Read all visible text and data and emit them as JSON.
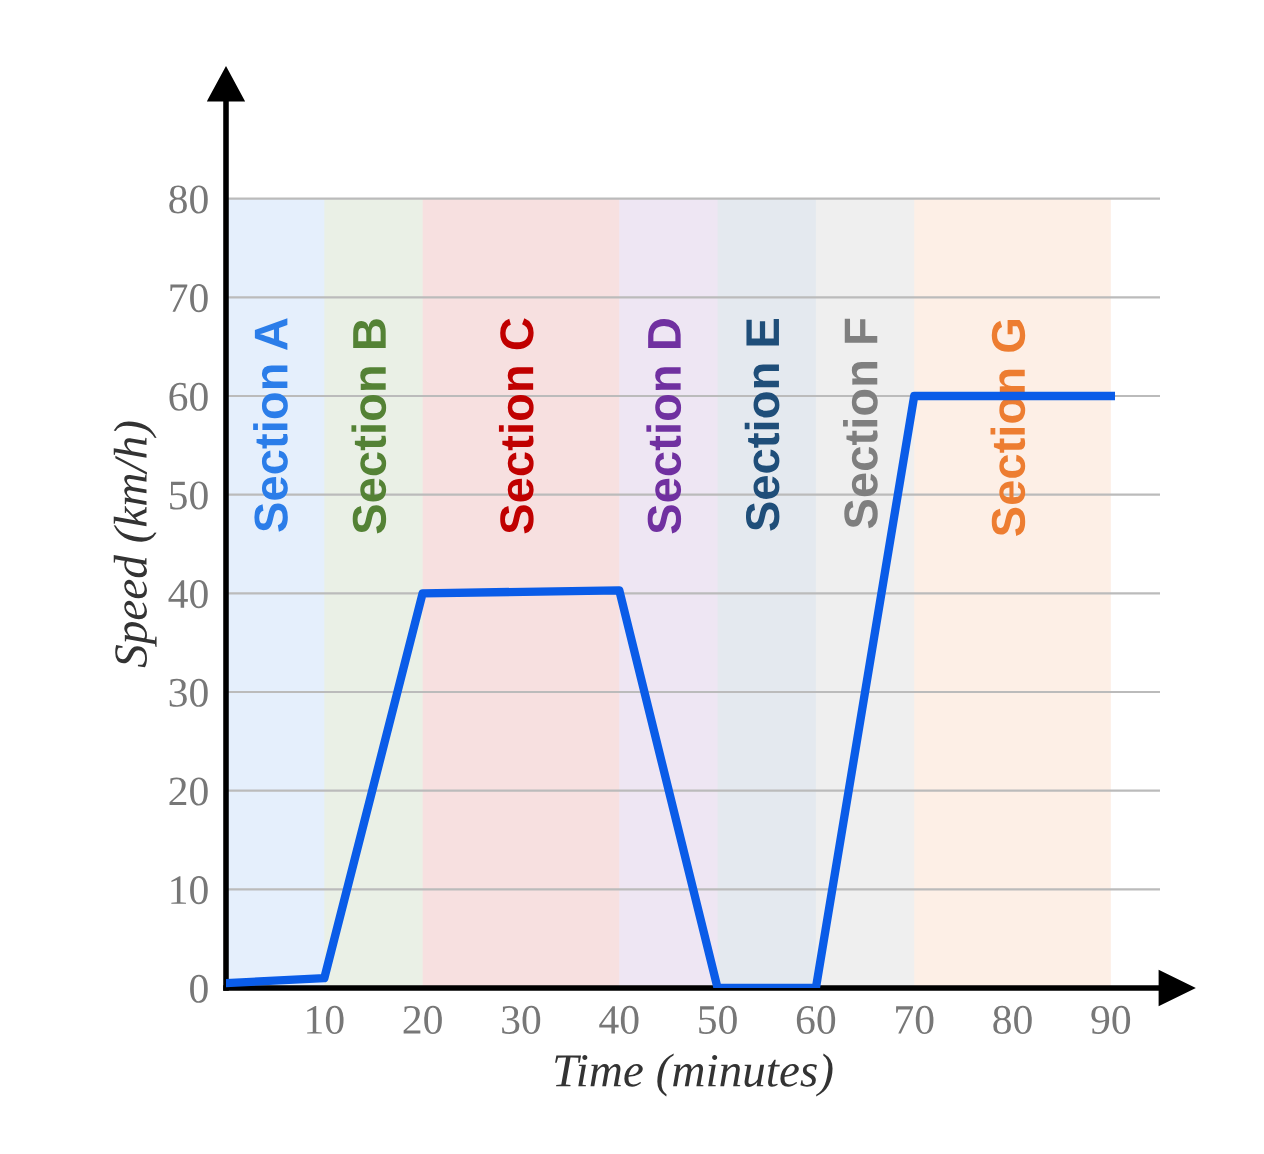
{
  "chart_data": {
    "type": "line",
    "xlabel": "Time (minutes)",
    "ylabel": "Speed (km/h)",
    "x": [
      0,
      10,
      20,
      40,
      50,
      60,
      70,
      90
    ],
    "series": [
      {
        "color": "#0a5ce8",
        "values": [
          0.5,
          1,
          40,
          40.3,
          0,
          0,
          60,
          60
        ]
      }
    ],
    "xlim": [
      0,
      95
    ],
    "ylim": [
      0,
      90
    ],
    "xticks": [
      10,
      20,
      30,
      40,
      50,
      60,
      70,
      80,
      90
    ],
    "yticks": [
      0,
      10,
      20,
      30,
      40,
      50,
      60,
      70,
      80
    ],
    "grid": "y",
    "marker": "none",
    "line_style": "solid",
    "bands": [
      {
        "axis": "x",
        "from": 0,
        "to": 10,
        "label": "Section A",
        "color": "#2b7de9"
      },
      {
        "axis": "x",
        "from": 10,
        "to": 20,
        "label": "Section B",
        "color": "#548235"
      },
      {
        "axis": "x",
        "from": 20,
        "to": 40,
        "label": "Section C",
        "color": "#c00000"
      },
      {
        "axis": "x",
        "from": 40,
        "to": 50,
        "label": "Section D",
        "color": "#7030a0"
      },
      {
        "axis": "x",
        "from": 50,
        "to": 60,
        "label": "Section E",
        "color": "#1f4e79"
      },
      {
        "axis": "x",
        "from": 60,
        "to": 70,
        "label": "Section F",
        "color": "#7f7f7f"
      },
      {
        "axis": "x",
        "from": 70,
        "to": 90,
        "label": "Section G",
        "color": "#ed7d31"
      }
    ]
  }
}
